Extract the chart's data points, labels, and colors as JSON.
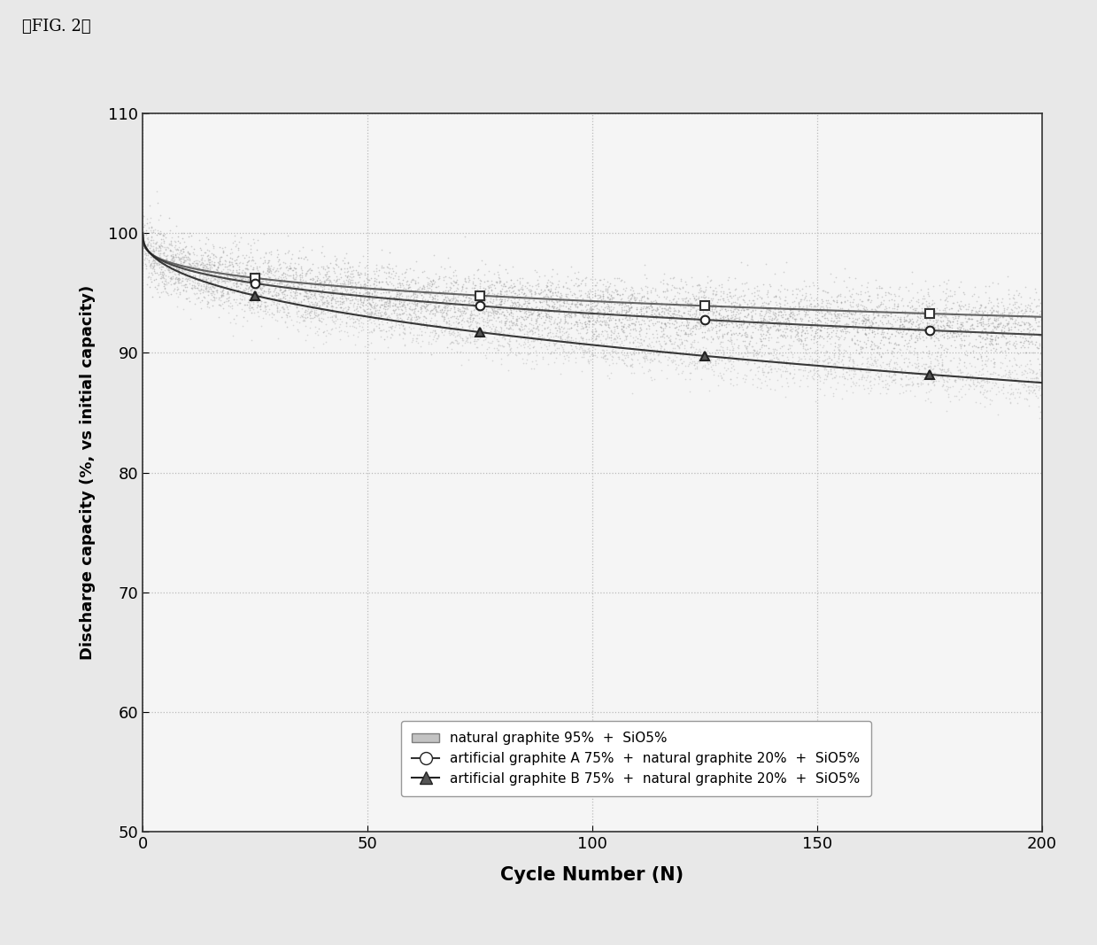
{
  "xlabel": "Cycle Number (N)",
  "ylabel": "Discharge capacity (%, vs initial capacity)",
  "xlim": [
    0,
    200
  ],
  "ylim": [
    50,
    110
  ],
  "yticks": [
    50,
    60,
    70,
    80,
    90,
    100,
    110
  ],
  "xticks": [
    0,
    50,
    100,
    150,
    200
  ],
  "series": [
    {
      "label": "natural graphite 95%  +  SiO5%",
      "marker": "s",
      "end_val": 93.0,
      "power": 0.3,
      "noise": 1.2,
      "n_scatter": 3000,
      "scatter_color": "#aaaaaa",
      "line_color": "#555555",
      "marker_face": "white",
      "marker_edge": "#333333"
    },
    {
      "label": "artificial graphite A 75%  +  natural graphite 20%  +  SiO5%",
      "marker": "o",
      "end_val": 91.5,
      "power": 0.34,
      "noise": 1.1,
      "n_scatter": 3000,
      "scatter_color": "#999999",
      "line_color": "#333333",
      "marker_face": "white",
      "marker_edge": "#222222"
    },
    {
      "label": "artificial graphite B 75%  +  natural graphite 20%  +  SiO5%",
      "marker": "^",
      "end_val": 87.5,
      "power": 0.42,
      "noise": 1.0,
      "n_scatter": 3000,
      "scatter_color": "#bbbbbb",
      "line_color": "#222222",
      "marker_face": "#555555",
      "marker_edge": "#222222"
    }
  ],
  "background_color": "#f0f0f0",
  "grid_color": "#bbbbbb",
  "fig_label": "』FIG. 2』"
}
